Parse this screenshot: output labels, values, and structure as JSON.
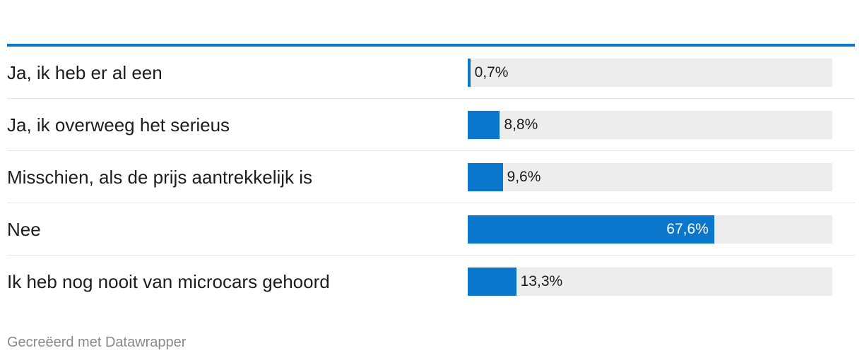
{
  "chart_data": {
    "type": "bar",
    "orientation": "horizontal",
    "categories": [
      "Ja, ik heb er al een",
      "Ja, ik overweeg het serieus",
      "Misschien, als de prijs aantrekkelijk is",
      "Nee",
      "Ik heb nog nooit van microcars gehoord"
    ],
    "values": [
      0.7,
      8.8,
      9.6,
      67.6,
      13.3
    ],
    "value_labels": [
      "0,7%",
      "8,8%",
      "9,6%",
      "67,6%",
      "13,3%"
    ],
    "xlim": [
      0,
      100
    ],
    "unit": "%",
    "grid": false,
    "legend": "none"
  },
  "footer": {
    "credit": "Gecreëerd met Datawrapper"
  },
  "colors": {
    "bar": "#0a76cc",
    "track": "#ededed",
    "top_rule": "#0a76cc",
    "label_inside": "#ffffff",
    "label_outside": "#1d1d1d"
  }
}
